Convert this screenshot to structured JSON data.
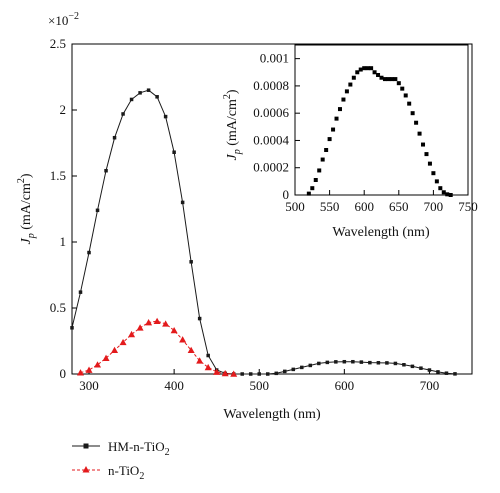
{
  "chart_data": [
    {
      "id": "main",
      "type": "line",
      "title": "",
      "xlabel": "Wavelength (nm)",
      "ylabel_prefix": "J",
      "ylabel_sub": "p",
      "ylabel_suffix": " (mA/cm",
      "ylabel_sup": "2",
      "ylabel_close": ")",
      "y_multiplier_base": "×10",
      "y_multiplier_exp": "−2",
      "xlim": [
        280,
        750
      ],
      "ylim": [
        0,
        2.5
      ],
      "xticks": [
        300,
        400,
        500,
        600,
        700
      ],
      "yticks": [
        0,
        0.5,
        1,
        1.5,
        2,
        2.5
      ],
      "ytick_labels": [
        "0",
        "0.5",
        "1",
        "1.5",
        "2",
        "2.5"
      ],
      "grid": false,
      "legend_placement": "bottom-left",
      "series": [
        {
          "name_base": "HM-n-TiO",
          "name_sub": "2",
          "color": "#1a1a1a",
          "marker": "square",
          "x": [
            280,
            290,
            300,
            310,
            320,
            330,
            340,
            350,
            360,
            370,
            380,
            390,
            400,
            410,
            420,
            430,
            440,
            450,
            460,
            470,
            480,
            490,
            500,
            510,
            520,
            530,
            540,
            550,
            560,
            570,
            580,
            590,
            600,
            610,
            620,
            630,
            640,
            650,
            660,
            670,
            680,
            690,
            700,
            710,
            720,
            730
          ],
          "y": [
            0.35,
            0.62,
            0.92,
            1.24,
            1.54,
            1.79,
            1.97,
            2.08,
            2.13,
            2.15,
            2.1,
            1.95,
            1.68,
            1.3,
            0.85,
            0.42,
            0.14,
            0.03,
            0.005,
            0,
            0,
            0,
            0,
            0,
            0.005,
            0.02,
            0.035,
            0.05,
            0.065,
            0.08,
            0.088,
            0.092,
            0.093,
            0.093,
            0.09,
            0.086,
            0.085,
            0.084,
            0.08,
            0.07,
            0.058,
            0.044,
            0.03,
            0.016,
            0.006,
            0.001
          ]
        },
        {
          "name_base": "n-TiO",
          "name_sub": "2",
          "color": "#e31a1c",
          "marker": "triangle",
          "x": [
            290,
            300,
            310,
            320,
            330,
            340,
            350,
            360,
            370,
            380,
            390,
            400,
            410,
            420,
            430,
            440,
            450,
            460,
            470
          ],
          "y": [
            0.01,
            0.03,
            0.07,
            0.12,
            0.18,
            0.24,
            0.3,
            0.35,
            0.39,
            0.4,
            0.38,
            0.33,
            0.26,
            0.18,
            0.1,
            0.05,
            0.015,
            0.004,
            0
          ]
        }
      ]
    },
    {
      "id": "inset",
      "type": "scatter",
      "title": "",
      "xlabel": "Wavelength (nm)",
      "ylabel_prefix": "J",
      "ylabel_sub": "p",
      "ylabel_suffix": " (mA/cm",
      "ylabel_sup": "2",
      "ylabel_close": ")",
      "xlim": [
        500,
        750
      ],
      "ylim": [
        0,
        0.0011
      ],
      "xticks": [
        500,
        550,
        600,
        650,
        700,
        750
      ],
      "yticks": [
        0,
        0.0002,
        0.0004,
        0.0006,
        0.0008,
        0.001
      ],
      "ytick_labels": [
        "0",
        "0.0002",
        "0.0004",
        "0.0006",
        "0.0008",
        "0.001"
      ],
      "grid": false,
      "series": [
        {
          "color": "#000000",
          "marker": "square",
          "x": [
            520,
            525,
            530,
            535,
            540,
            545,
            550,
            555,
            560,
            565,
            570,
            575,
            580,
            585,
            590,
            595,
            600,
            605,
            610,
            615,
            620,
            625,
            630,
            635,
            640,
            645,
            650,
            655,
            660,
            665,
            670,
            675,
            680,
            685,
            690,
            695,
            700,
            705,
            710,
            715,
            720,
            725
          ],
          "y": [
            1e-05,
            5e-05,
            0.00011,
            0.00018,
            0.00026,
            0.00033,
            0.00041,
            0.00048,
            0.00056,
            0.00063,
            0.0007,
            0.00076,
            0.00081,
            0.00086,
            0.0009,
            0.00092,
            0.00093,
            0.00093,
            0.00093,
            0.0009,
            0.00088,
            0.00086,
            0.00085,
            0.00085,
            0.00085,
            0.00085,
            0.00082,
            0.00078,
            0.00073,
            0.00067,
            0.0006,
            0.00053,
            0.00045,
            0.00037,
            0.0003,
            0.00023,
            0.00016,
            0.0001,
            5e-05,
            2e-05,
            5e-06,
            0
          ]
        }
      ]
    }
  ]
}
